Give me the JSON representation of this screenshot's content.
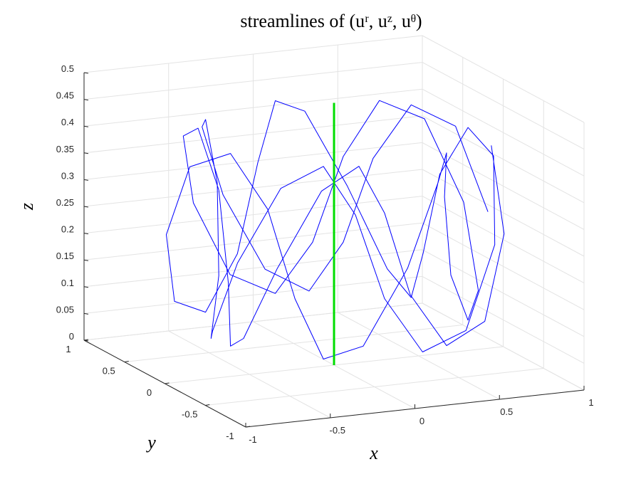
{
  "chart_data": {
    "type": "line3d",
    "title": "streamlines of (uʳ, uᶻ, uᶿ)",
    "xlabel": "x",
    "ylabel": "y",
    "zlabel": "z",
    "xlim": [
      -1,
      1
    ],
    "ylim": [
      -1,
      1
    ],
    "zlim": [
      0,
      0.5
    ],
    "xticks": [
      -1,
      -0.5,
      0,
      0.5,
      1
    ],
    "yticks": [
      -1,
      -0.5,
      0,
      0.5,
      1
    ],
    "zticks": [
      0,
      0.05,
      0.1,
      0.15,
      0.2,
      0.25,
      0.3,
      0.35,
      0.4,
      0.45,
      0.5
    ],
    "grid": true,
    "series": [
      {
        "color": "#0000ff",
        "x": [
          0.91,
          0.824,
          0.63,
          0.442,
          0.313,
          0.188,
          0,
          -0.236,
          -0.427,
          -0.514,
          -0.541,
          -0.604,
          -0.727,
          -0.824,
          -0.788,
          -0.603,
          -0.364,
          -0.162,
          0,
          0.188,
          0.427,
          0.643,
          0.739,
          0.702,
          0.625,
          0.604,
          0.63,
          0.603,
          0.455,
          0.221,
          0,
          -0.162,
          -0.313,
          -0.514,
          -0.739,
          -0.879,
          -0.853,
          -0.702,
          -0.541,
          -0.442,
          -0.364,
          -0.221,
          0,
          0.221,
          0.364,
          0.442,
          0.541,
          0.702,
          0.853,
          0.879,
          0.739,
          0.514,
          0.313,
          0.162,
          0,
          -0.221,
          -0.455,
          -0.603,
          -0.63,
          -0.604,
          -0.625,
          -0.702,
          -0.739,
          -0.643,
          -0.427,
          -0.188,
          0,
          0.162,
          0.364,
          0.603,
          0.788,
          0.824
        ],
        "y": [
          0,
          0.221,
          0.364,
          0.442,
          0.541,
          0.702,
          0.853,
          0.879,
          0.739,
          0.514,
          0.313,
          0.162,
          0,
          -0.221,
          -0.455,
          -0.603,
          -0.63,
          -0.604,
          -0.625,
          -0.702,
          -0.739,
          -0.643,
          -0.427,
          -0.188,
          0,
          0.162,
          0.364,
          0.603,
          0.788,
          0.824,
          0.727,
          0.604,
          0.541,
          0.514,
          0.427,
          0.236,
          0,
          -0.188,
          -0.313,
          -0.442,
          -0.63,
          -0.824,
          -0.91,
          -0.824,
          -0.63,
          -0.442,
          -0.313,
          -0.188,
          0,
          0.236,
          0.427,
          0.514,
          0.541,
          0.604,
          0.727,
          0.824,
          0.788,
          0.603,
          0.364,
          0.162,
          0,
          -0.188,
          -0.427,
          -0.643,
          -0.739,
          -0.702,
          -0.625,
          -0.604,
          -0.63,
          -0.603,
          -0.455,
          -0.221
        ],
        "z": [
          0.255,
          0.4,
          0.435,
          0.335,
          0.175,
          0.075,
          0.11,
          0.255,
          0.4,
          0.435,
          0.335,
          0.175,
          0.075,
          0.11,
          0.255,
          0.4,
          0.435,
          0.335,
          0.175,
          0.075,
          0.11,
          0.255,
          0.4,
          0.435,
          0.335,
          0.175,
          0.075,
          0.11,
          0.255,
          0.4,
          0.435,
          0.335,
          0.175,
          0.075,
          0.11,
          0.255,
          0.4,
          0.435,
          0.335,
          0.175,
          0.075,
          0.11,
          0.255,
          0.4,
          0.435,
          0.335,
          0.175,
          0.075,
          0.11,
          0.255,
          0.4,
          0.435,
          0.335,
          0.175,
          0.075,
          0.11,
          0.255,
          0.4,
          0.435,
          0.335,
          0.175,
          0.075,
          0.11,
          0.255,
          0.4,
          0.435,
          0.335,
          0.175,
          0.075,
          0.11,
          0.255,
          0.4
        ]
      },
      {
        "color": "#00dd00",
        "x": [
          0,
          0
        ],
        "y": [
          0,
          0
        ],
        "z": [
          0,
          0.49
        ]
      }
    ]
  }
}
